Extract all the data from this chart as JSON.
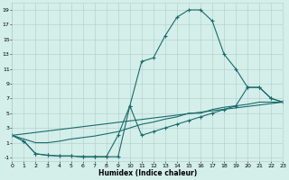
{
  "xlabel": "Humidex (Indice chaleur)",
  "bg_color": "#d4eeea",
  "grid_color": "#b0cccc",
  "line_color": "#1a6b6b",
  "xlim": [
    0,
    23
  ],
  "ylim": [
    -1.5,
    20
  ],
  "xticks": [
    0,
    1,
    2,
    3,
    4,
    5,
    6,
    7,
    8,
    9,
    10,
    11,
    12,
    13,
    14,
    15,
    16,
    17,
    18,
    19,
    20,
    21,
    22,
    23
  ],
  "yticks": [
    -1,
    1,
    3,
    5,
    7,
    9,
    11,
    13,
    15,
    17,
    19
  ],
  "curve1_x": [
    0,
    1,
    2,
    3,
    4,
    5,
    6,
    7,
    8,
    9,
    10,
    11,
    12,
    13,
    14,
    15,
    16,
    17,
    18,
    19,
    20,
    21,
    22,
    23
  ],
  "curve1_y": [
    2,
    1.2,
    -0.5,
    -0.7,
    -0.8,
    -0.8,
    -0.9,
    -0.9,
    -0.9,
    -0.9,
    6.0,
    12.0,
    12.5,
    15.5,
    18.0,
    19.0,
    19.0,
    17.5,
    13.0,
    11.0,
    8.5,
    8.5,
    7.0,
    6.5
  ],
  "curve2_x": [
    0,
    1,
    2,
    3,
    4,
    5,
    6,
    7,
    8,
    9,
    10,
    11,
    12,
    13,
    14,
    15,
    16,
    17,
    18,
    19,
    20,
    21,
    22,
    23
  ],
  "curve2_y": [
    2,
    1.2,
    -0.5,
    -0.7,
    -0.8,
    -0.8,
    -0.9,
    -0.9,
    -0.9,
    2.0,
    6.0,
    2.0,
    2.5,
    3.0,
    3.5,
    4.0,
    4.5,
    5.0,
    5.5,
    6.0,
    8.5,
    8.5,
    7.0,
    6.5
  ],
  "curve3_x": [
    0,
    23
  ],
  "curve3_y": [
    2,
    6.5
  ],
  "curve4_x": [
    0,
    1,
    2,
    3,
    4,
    5,
    6,
    7,
    8,
    9,
    10,
    11,
    12,
    13,
    14,
    15,
    16,
    17,
    18,
    19,
    20,
    21,
    22,
    23
  ],
  "curve4_y": [
    2,
    1.5,
    1.0,
    1.0,
    1.2,
    1.5,
    1.7,
    1.9,
    2.2,
    2.5,
    3.0,
    3.5,
    3.8,
    4.2,
    4.5,
    5.0,
    5.0,
    5.5,
    5.8,
    6.0,
    6.2,
    6.5,
    6.5,
    6.5
  ]
}
